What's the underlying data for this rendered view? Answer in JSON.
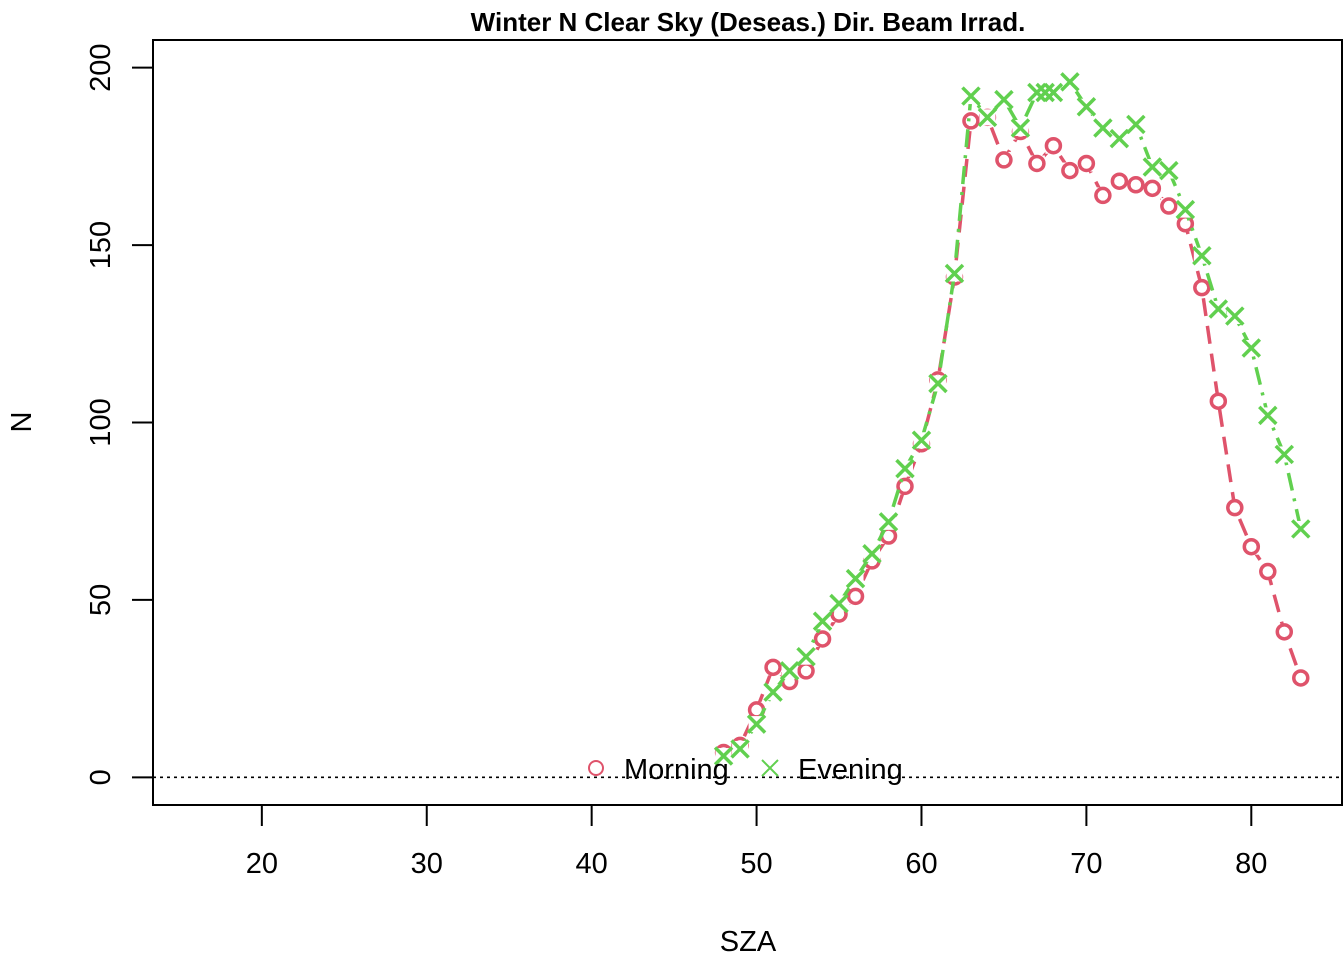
{
  "chart_data": {
    "type": "line",
    "title": "Winter N Clear Sky (Deseas.) Dir. Beam Irrad.",
    "xlabel": "SZA",
    "ylabel": "N",
    "xlim": [
      13.4,
      85.5
    ],
    "ylim": [
      -7.8,
      207.8
    ],
    "xticks": [
      "20",
      "30",
      "40",
      "50",
      "60",
      "70",
      "80"
    ],
    "yticks": [
      "0",
      "50",
      "100",
      "150",
      "200"
    ],
    "reference_line": {
      "y": 0,
      "style": "dotted"
    },
    "legend": {
      "position": "bottom-center",
      "orientation": "horizontal"
    },
    "series": [
      {
        "name": "Morning",
        "color": "#DF536B",
        "marker": "circle",
        "line_style": "dashed",
        "x": [
          48,
          49,
          50,
          51,
          52,
          53,
          54,
          55,
          56,
          57,
          58,
          59,
          60,
          61,
          62,
          63,
          64,
          65,
          66,
          67,
          68,
          69,
          70,
          71,
          72,
          73,
          74,
          75,
          76,
          77,
          78,
          79,
          80,
          81,
          82,
          83
        ],
        "y": [
          7,
          9,
          19,
          31,
          27,
          30,
          39,
          46,
          51,
          61,
          68,
          82,
          94,
          112,
          141,
          185,
          186,
          174,
          182,
          173,
          178,
          171,
          173,
          164,
          168,
          167,
          166,
          161,
          156,
          138,
          106,
          76,
          65,
          58,
          41,
          28
        ]
      },
      {
        "name": "Evening",
        "color": "#61D04F",
        "marker": "cross",
        "line_style": "dotdash",
        "x": [
          48,
          49,
          50,
          51,
          52,
          53,
          54,
          55,
          56,
          57,
          58,
          59,
          60,
          61,
          62,
          63,
          64,
          65,
          66,
          67,
          67.5,
          68,
          69,
          70,
          71,
          72,
          73,
          74,
          75,
          76,
          77,
          78,
          79,
          80,
          81,
          82,
          83
        ],
        "y": [
          6,
          8,
          15,
          24,
          30,
          34,
          44,
          49,
          56,
          63,
          72,
          87,
          95,
          111,
          142,
          192,
          186,
          191,
          183,
          193,
          193,
          193,
          196,
          189,
          183,
          180,
          184,
          172,
          171,
          160,
          147,
          132,
          130,
          121,
          102,
          91,
          70
        ]
      }
    ]
  }
}
